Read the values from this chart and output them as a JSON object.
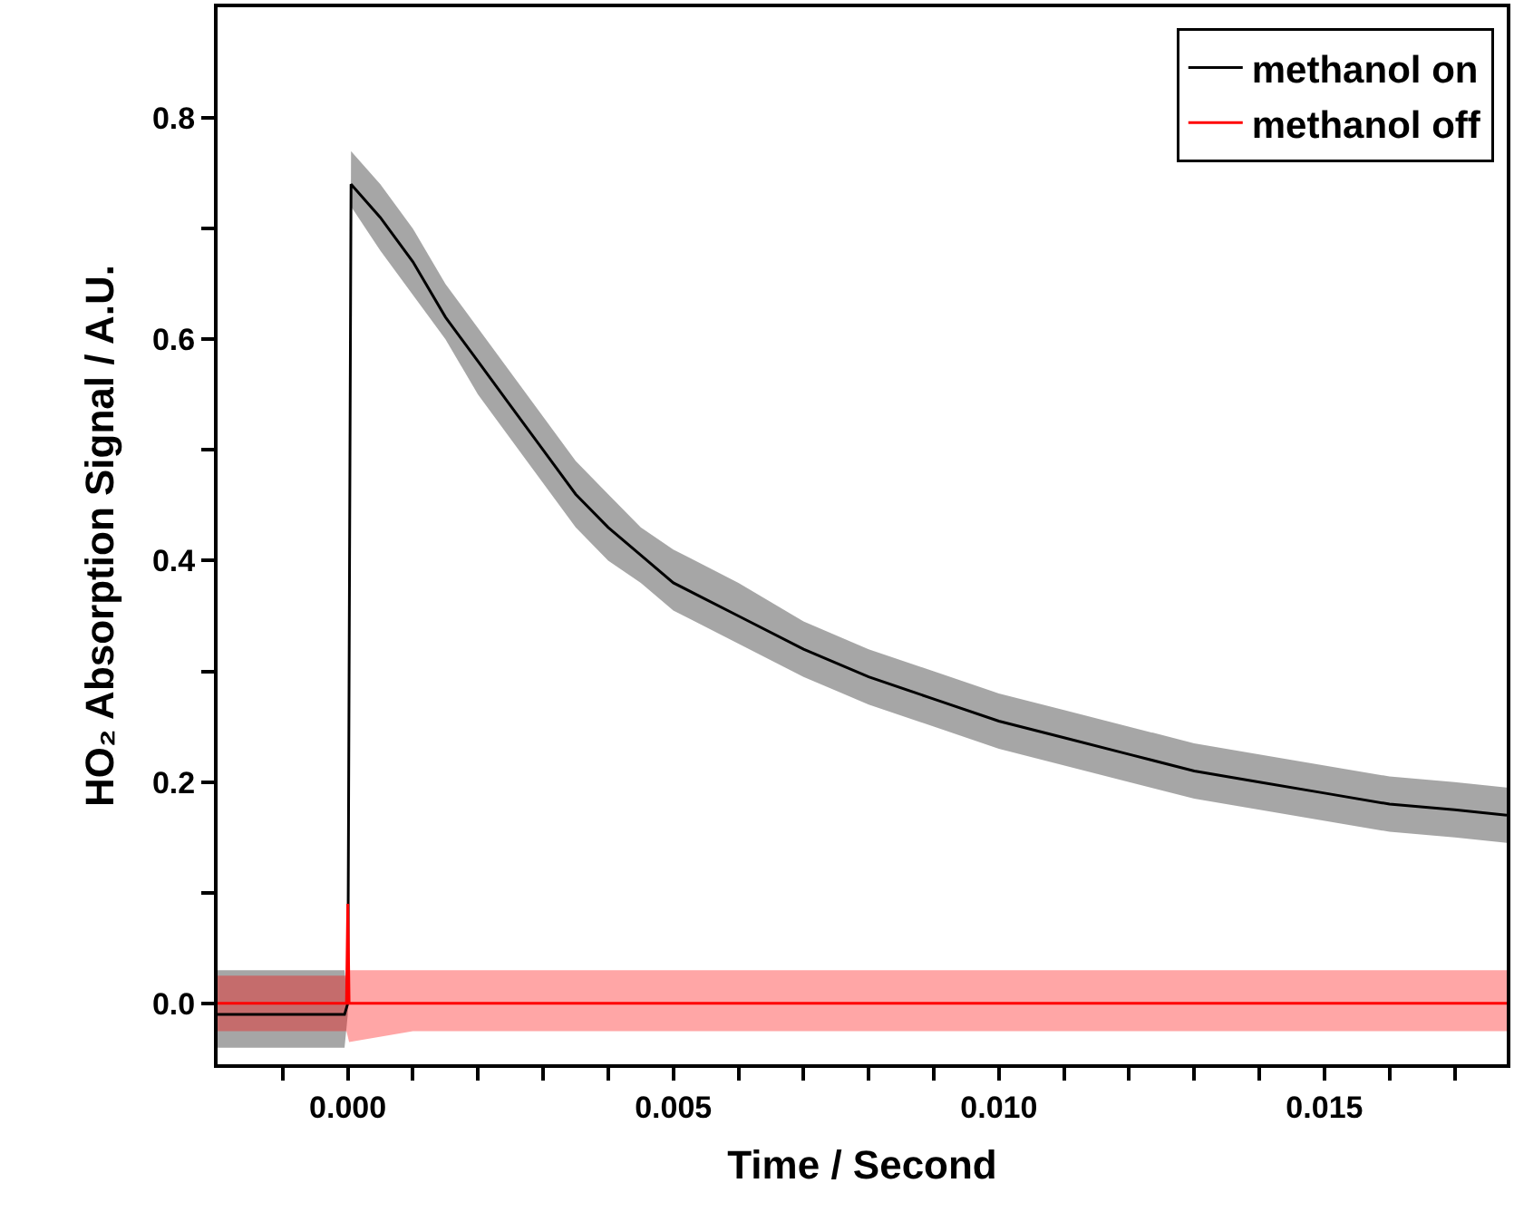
{
  "chart_data": {
    "type": "line",
    "xlabel": "Time / Second",
    "ylabel": "HO₂ Absorption Signal / A.U.",
    "xlim": [
      -0.002,
      0.0178
    ],
    "ylim": [
      -0.055,
      0.9
    ],
    "xticks": [
      {
        "value": -0.001,
        "label": null
      },
      {
        "value": 0,
        "label": "0.000"
      },
      {
        "value": 0.001,
        "label": null
      },
      {
        "value": 0.002,
        "label": null
      },
      {
        "value": 0.003,
        "label": null
      },
      {
        "value": 0.004,
        "label": null
      },
      {
        "value": 0.005,
        "label": "0.005"
      },
      {
        "value": 0.006,
        "label": null
      },
      {
        "value": 0.007,
        "label": null
      },
      {
        "value": 0.008,
        "label": null
      },
      {
        "value": 0.009,
        "label": null
      },
      {
        "value": 0.01,
        "label": "0.010"
      },
      {
        "value": 0.011,
        "label": null
      },
      {
        "value": 0.012,
        "label": null
      },
      {
        "value": 0.013,
        "label": null
      },
      {
        "value": 0.014,
        "label": null
      },
      {
        "value": 0.015,
        "label": "0.015"
      },
      {
        "value": 0.016,
        "label": null
      },
      {
        "value": 0.017,
        "label": null
      }
    ],
    "yticks": [
      {
        "value": 0,
        "label": "0.0"
      },
      {
        "value": 0.1,
        "label": null
      },
      {
        "value": 0.2,
        "label": "0.2"
      },
      {
        "value": 0.3,
        "label": null
      },
      {
        "value": 0.4,
        "label": "0.4"
      },
      {
        "value": 0.5,
        "label": null
      },
      {
        "value": 0.6,
        "label": "0.6"
      },
      {
        "value": 0.7,
        "label": null
      },
      {
        "value": 0.8,
        "label": "0.8"
      }
    ],
    "legend": "top right",
    "marker": "none",
    "line_style": "solid",
    "series": [
      {
        "name": "methanol on",
        "color": "#000000",
        "x": [
          -0.002,
          -0.001,
          -5e-05,
          0,
          5e-05,
          0.0005,
          0.001,
          0.0015,
          0.002,
          0.0025,
          0.003,
          0.0035,
          0.004,
          0.0045,
          0.005,
          0.006,
          0.007,
          0.008,
          0.009,
          0.01,
          0.011,
          0.012,
          0.013,
          0.014,
          0.015,
          0.016,
          0.017,
          0.0178
        ],
        "values": [
          -0.01,
          -0.01,
          -0.01,
          0.0,
          0.74,
          0.71,
          0.67,
          0.62,
          0.58,
          0.54,
          0.5,
          0.46,
          0.43,
          0.405,
          0.38,
          0.35,
          0.32,
          0.295,
          0.275,
          0.255,
          0.24,
          0.225,
          0.21,
          0.2,
          0.19,
          0.18,
          0.175,
          0.17
        ],
        "lower": [
          -0.04,
          -0.04,
          -0.04,
          -0.01,
          0.72,
          0.68,
          0.64,
          0.6,
          0.55,
          0.51,
          0.47,
          0.43,
          0.4,
          0.38,
          0.355,
          0.325,
          0.295,
          0.27,
          0.25,
          0.23,
          0.215,
          0.2,
          0.185,
          0.175,
          0.165,
          0.155,
          0.15,
          0.145
        ],
        "upper": [
          0.03,
          0.03,
          0.03,
          0.0,
          0.77,
          0.74,
          0.7,
          0.65,
          0.61,
          0.57,
          0.53,
          0.49,
          0.46,
          0.43,
          0.41,
          0.38,
          0.345,
          0.32,
          0.3,
          0.28,
          0.265,
          0.25,
          0.235,
          0.225,
          0.215,
          0.205,
          0.2,
          0.195
        ]
      },
      {
        "name": "methanol off",
        "color": "#ff0000",
        "x": [
          -0.002,
          -0.001,
          -2e-05,
          0,
          2e-05,
          0.001,
          0.005,
          0.01,
          0.015,
          0.0178
        ],
        "values": [
          0.0,
          0.0,
          0.0,
          0.09,
          0.0,
          0.0,
          0.0,
          0.0,
          0.0,
          0.0
        ],
        "lower": [
          -0.025,
          -0.025,
          -0.025,
          -0.03,
          -0.035,
          -0.025,
          -0.025,
          -0.025,
          -0.025,
          -0.025
        ],
        "upper": [
          0.025,
          0.025,
          0.025,
          0.09,
          0.03,
          0.03,
          0.03,
          0.03,
          0.03,
          0.03
        ]
      }
    ]
  }
}
